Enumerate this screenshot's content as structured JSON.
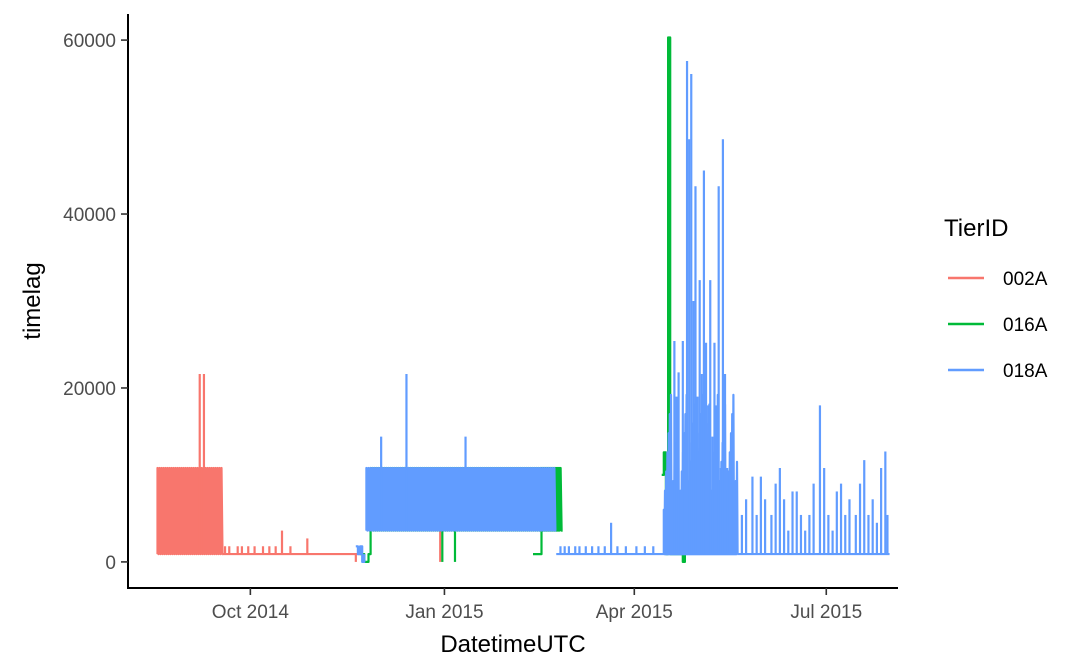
{
  "chart_data": {
    "type": "line",
    "title": "",
    "xlabel": "DatetimeUTC",
    "ylabel": "timelag",
    "x_axis": {
      "type": "date",
      "range": [
        "2014-08-04",
        "2015-08-04"
      ],
      "ticks": [
        {
          "value": "2014-10-01",
          "label": "Oct 2014"
        },
        {
          "value": "2015-01-01",
          "label": "Jan 2015"
        },
        {
          "value": "2015-04-01",
          "label": "Apr 2015"
        },
        {
          "value": "2015-07-01",
          "label": "Jul 2015"
        }
      ]
    },
    "y_axis": {
      "range": [
        -3000,
        63000
      ],
      "ticks": [
        {
          "value": 0,
          "label": "0"
        },
        {
          "value": 20000,
          "label": "20000"
        },
        {
          "value": 40000,
          "label": "40000"
        },
        {
          "value": 60000,
          "label": "60000"
        }
      ]
    },
    "grid": false,
    "legend": {
      "title": "TierID",
      "position": "right",
      "entries": [
        {
          "label": "002A",
          "color": "#F8766D"
        },
        {
          "label": "016A",
          "color": "#00BA38"
        },
        {
          "label": "018A",
          "color": "#619CFF"
        }
      ]
    },
    "series": [
      {
        "name": "002A",
        "color": "#F8766D",
        "segments": [
          {
            "kind": "oscillation",
            "from": "2014-08-18",
            "to": "2014-09-18",
            "low": 900,
            "high": 10800,
            "spikes": [
              {
                "x": "2014-09-07",
                "y": 21600
              },
              {
                "x": "2014-09-09",
                "y": 21600
              }
            ]
          },
          {
            "kind": "sparse",
            "from": "2014-09-18",
            "to": "2014-11-22",
            "base": 900,
            "spikes": [
              {
                "x": "2014-09-19",
                "y": 1800
              },
              {
                "x": "2014-09-21",
                "y": 1800
              },
              {
                "x": "2014-09-25",
                "y": 1800
              },
              {
                "x": "2014-09-27",
                "y": 1800
              },
              {
                "x": "2014-09-30",
                "y": 1800
              },
              {
                "x": "2014-10-03",
                "y": 1800
              },
              {
                "x": "2014-10-07",
                "y": 1800
              },
              {
                "x": "2014-10-10",
                "y": 1800
              },
              {
                "x": "2014-10-13",
                "y": 1800
              },
              {
                "x": "2014-10-16",
                "y": 3600
              },
              {
                "x": "2014-10-20",
                "y": 1800
              },
              {
                "x": "2014-10-28",
                "y": 2700
              },
              {
                "x": "2014-11-20",
                "y": 0
              }
            ]
          },
          {
            "kind": "dips",
            "points": [
              {
                "x": "2014-12-30",
                "y": 0
              },
              {
                "x": "2015-05-17",
                "y": 1000
              }
            ]
          }
        ]
      },
      {
        "name": "016A",
        "color": "#00BA38",
        "segments": [
          {
            "kind": "step",
            "points": [
              {
                "x": "2014-11-22",
                "y": 900
              },
              {
                "x": "2014-11-24",
                "y": 0
              },
              {
                "x": "2014-11-26",
                "y": 900
              },
              {
                "x": "2014-11-27",
                "y": 3600
              }
            ]
          },
          {
            "kind": "oscillation",
            "from": "2014-11-27",
            "to": "2015-02-26",
            "low": 3600,
            "high": 10800,
            "spikes": [],
            "drops": [
              {
                "x": "2014-12-31",
                "y": 0
              },
              {
                "x": "2015-01-06",
                "y": 0
              }
            ]
          },
          {
            "kind": "step",
            "points": [
              {
                "x": "2015-02-12",
                "y": 900
              },
              {
                "x": "2015-02-15",
                "y": 900
              },
              {
                "x": "2015-02-16",
                "y": 3600
              }
            ]
          },
          {
            "kind": "oscillation",
            "from": "2015-02-16",
            "to": "2015-02-25",
            "low": 3600,
            "high": 10800,
            "spikes": []
          },
          {
            "kind": "step",
            "points": [
              {
                "x": "2015-04-14",
                "y": 10000
              },
              {
                "x": "2015-04-15",
                "y": 12600
              },
              {
                "x": "2015-04-16",
                "y": 900
              },
              {
                "x": "2015-04-17",
                "y": 60300
              },
              {
                "x": "2015-04-18",
                "y": 900
              },
              {
                "x": "2015-04-24",
                "y": 0
              },
              {
                "x": "2015-04-25",
                "y": 1000
              },
              {
                "x": "2015-05-18",
                "y": 1000
              }
            ]
          }
        ]
      },
      {
        "name": "018A",
        "color": "#619CFF",
        "segments": [
          {
            "kind": "step",
            "points": [
              {
                "x": "2014-11-20",
                "y": 1800
              },
              {
                "x": "2014-11-21",
                "y": 900
              },
              {
                "x": "2014-11-22",
                "y": 1800
              },
              {
                "x": "2014-11-23",
                "y": 0
              },
              {
                "x": "2014-11-24",
                "y": 900
              }
            ]
          },
          {
            "kind": "oscillation",
            "from": "2014-11-25",
            "to": "2015-02-23",
            "low": 3600,
            "high": 10800,
            "spikes": [
              {
                "x": "2014-12-02",
                "y": 14400
              },
              {
                "x": "2014-12-14",
                "y": 21600
              },
              {
                "x": "2015-01-11",
                "y": 14400
              }
            ]
          },
          {
            "kind": "sparse",
            "from": "2015-02-23",
            "to": "2015-04-15",
            "base": 900,
            "spikes": [
              {
                "x": "2015-02-25",
                "y": 1800
              },
              {
                "x": "2015-02-27",
                "y": 1800
              },
              {
                "x": "2015-03-01",
                "y": 1800
              },
              {
                "x": "2015-03-04",
                "y": 1800
              },
              {
                "x": "2015-03-06",
                "y": 1800
              },
              {
                "x": "2015-03-09",
                "y": 1800
              },
              {
                "x": "2015-03-12",
                "y": 1800
              },
              {
                "x": "2015-03-15",
                "y": 1800
              },
              {
                "x": "2015-03-18",
                "y": 1800
              },
              {
                "x": "2015-03-21",
                "y": 4500
              },
              {
                "x": "2015-03-24",
                "y": 1800
              },
              {
                "x": "2015-03-28",
                "y": 1800
              },
              {
                "x": "2015-04-02",
                "y": 1800
              },
              {
                "x": "2015-04-06",
                "y": 1800
              },
              {
                "x": "2015-04-10",
                "y": 1800
              }
            ]
          },
          {
            "kind": "burst",
            "from": "2015-04-15",
            "to": "2015-05-20",
            "base": 900,
            "spikes": [
              {
                "x": "2015-04-18",
                "y": 12500
              },
              {
                "x": "2015-04-20",
                "y": 25400
              },
              {
                "x": "2015-04-21",
                "y": 19000
              },
              {
                "x": "2015-04-22",
                "y": 21800
              },
              {
                "x": "2015-04-24",
                "y": 25400
              },
              {
                "x": "2015-04-26",
                "y": 57600
              },
              {
                "x": "2015-04-27",
                "y": 48600
              },
              {
                "x": "2015-04-28",
                "y": 56100
              },
              {
                "x": "2015-04-29",
                "y": 30000
              },
              {
                "x": "2015-04-30",
                "y": 43200
              },
              {
                "x": "2015-05-01",
                "y": 19000
              },
              {
                "x": "2015-05-02",
                "y": 32400
              },
              {
                "x": "2015-05-03",
                "y": 21600
              },
              {
                "x": "2015-05-04",
                "y": 45000
              },
              {
                "x": "2015-05-05",
                "y": 25200
              },
              {
                "x": "2015-05-06",
                "y": 18000
              },
              {
                "x": "2015-05-07",
                "y": 32400
              },
              {
                "x": "2015-05-08",
                "y": 14400
              },
              {
                "x": "2015-05-09",
                "y": 25200
              },
              {
                "x": "2015-05-10",
                "y": 18000
              },
              {
                "x": "2015-05-11",
                "y": 43200
              },
              {
                "x": "2015-05-12",
                "y": 10800
              },
              {
                "x": "2015-05-13",
                "y": 48600
              },
              {
                "x": "2015-05-14",
                "y": 21600
              },
              {
                "x": "2015-05-15",
                "y": 10800
              },
              {
                "x": "2015-05-17",
                "y": 9000
              }
            ]
          },
          {
            "kind": "sparse",
            "from": "2015-05-20",
            "to": "2015-07-31",
            "base": 900,
            "spikes": [
              {
                "x": "2015-05-22",
                "y": 5400
              },
              {
                "x": "2015-05-24",
                "y": 7200
              },
              {
                "x": "2015-05-27",
                "y": 9800
              },
              {
                "x": "2015-05-29",
                "y": 5400
              },
              {
                "x": "2015-05-31",
                "y": 9800
              },
              {
                "x": "2015-06-02",
                "y": 7200
              },
              {
                "x": "2015-06-05",
                "y": 5400
              },
              {
                "x": "2015-06-07",
                "y": 9000
              },
              {
                "x": "2015-06-09",
                "y": 10800
              },
              {
                "x": "2015-06-11",
                "y": 7200
              },
              {
                "x": "2015-06-13",
                "y": 3600
              },
              {
                "x": "2015-06-15",
                "y": 8100
              },
              {
                "x": "2015-06-17",
                "y": 8100
              },
              {
                "x": "2015-06-19",
                "y": 5400
              },
              {
                "x": "2015-06-21",
                "y": 3600
              },
              {
                "x": "2015-06-23",
                "y": 5400
              },
              {
                "x": "2015-06-25",
                "y": 9000
              },
              {
                "x": "2015-06-28",
                "y": 18000
              },
              {
                "x": "2015-06-30",
                "y": 10800
              },
              {
                "x": "2015-07-02",
                "y": 5400
              },
              {
                "x": "2015-07-04",
                "y": 3600
              },
              {
                "x": "2015-07-06",
                "y": 8100
              },
              {
                "x": "2015-07-08",
                "y": 9000
              },
              {
                "x": "2015-07-10",
                "y": 5400
              },
              {
                "x": "2015-07-12",
                "y": 7200
              },
              {
                "x": "2015-07-15",
                "y": 5400
              },
              {
                "x": "2015-07-17",
                "y": 9000
              },
              {
                "x": "2015-07-19",
                "y": 11700
              },
              {
                "x": "2015-07-21",
                "y": 5400
              },
              {
                "x": "2015-07-23",
                "y": 7200
              },
              {
                "x": "2015-07-25",
                "y": 4500
              },
              {
                "x": "2015-07-27",
                "y": 10800
              },
              {
                "x": "2015-07-29",
                "y": 12700
              },
              {
                "x": "2015-07-30",
                "y": 5400
              }
            ]
          }
        ]
      }
    ]
  }
}
